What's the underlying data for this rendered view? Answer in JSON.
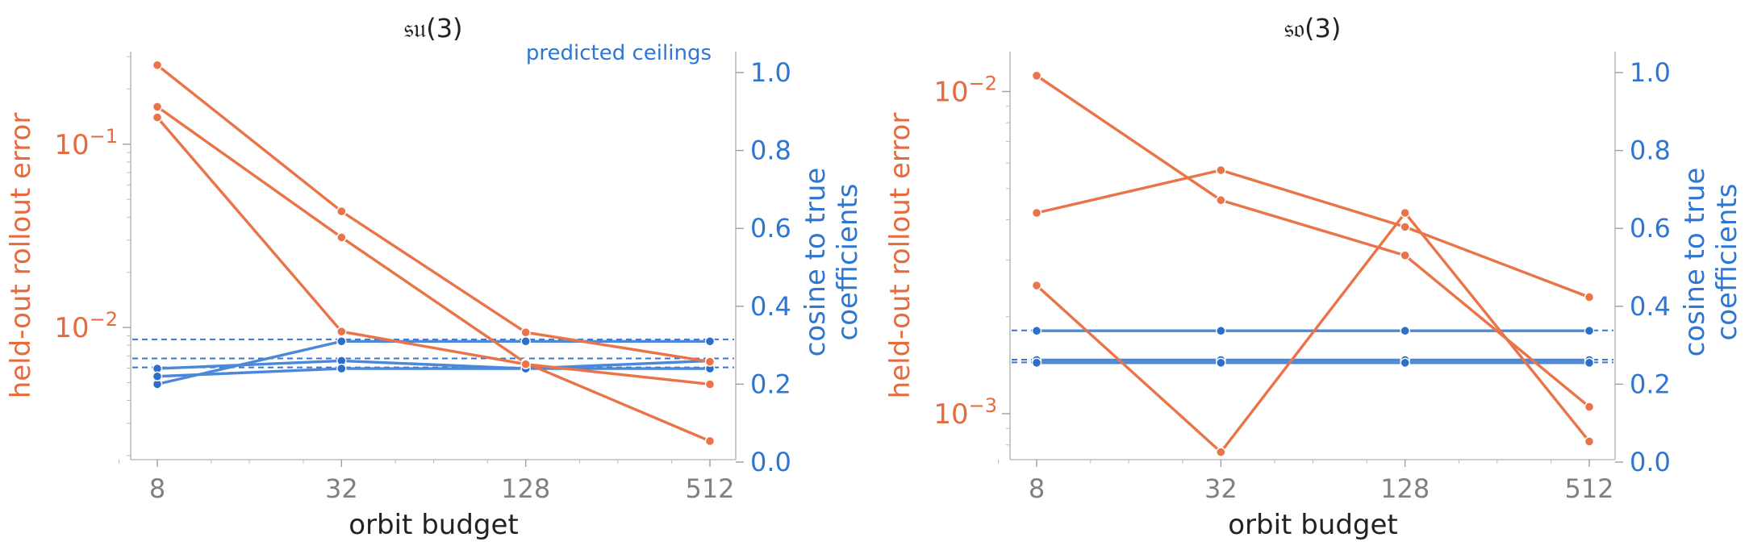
{
  "chart_data": [
    {
      "type": "line",
      "title": "𝔰𝔲(3)",
      "xlabel": "orbit budget",
      "ylabel_left": "held-out rollout error",
      "ylabel_right": "cosine to true\ncoefficients",
      "x": [
        8,
        32,
        128,
        512
      ],
      "x_scale": "log2",
      "left_yscale": "log",
      "left_ylim": [
        0.0019,
        0.32
      ],
      "left_ytick_labels": [
        "10^-2",
        "10^-1"
      ],
      "right_ylim": [
        0,
        1.05
      ],
      "right_ytick_labels": [
        "0.0",
        "0.2",
        "0.4",
        "0.6",
        "0.8",
        "1.0"
      ],
      "annotation": "predicted ceilings",
      "left_series": [
        {
          "values": [
            0.27,
            0.043,
            0.0094,
            0.0065
          ]
        },
        {
          "values": [
            0.16,
            0.031,
            0.0064,
            0.0024
          ]
        },
        {
          "values": [
            0.14,
            0.0095,
            0.0063,
            0.0049
          ]
        }
      ],
      "right_series": [
        {
          "values": [
            0.2,
            0.31,
            0.31,
            0.31
          ]
        },
        {
          "values": [
            0.24,
            0.26,
            0.24,
            0.24
          ]
        },
        {
          "values": [
            0.22,
            0.24,
            0.24,
            0.26
          ]
        }
      ],
      "ceilings": [
        0.315,
        0.266,
        0.243
      ]
    },
    {
      "type": "line",
      "title": "𝔰𝔬(3)",
      "xlabel": "orbit budget",
      "ylabel_left": "held-out rollout error",
      "ylabel_right": "cosine to true\ncoefficients",
      "x": [
        8,
        32,
        128,
        512
      ],
      "x_scale": "log2",
      "left_yscale": "log",
      "left_ylim": [
        0.00072,
        0.0133
      ],
      "left_ytick_labels": [
        "10^-3",
        "10^-2"
      ],
      "right_ylim": [
        0,
        1.05
      ],
      "right_ytick_labels": [
        "0.0",
        "0.2",
        "0.4",
        "0.6",
        "0.8",
        "1.0"
      ],
      "left_series": [
        {
          "values": [
            0.0112,
            0.0046,
            0.0031,
            0.00105
          ]
        },
        {
          "values": [
            0.0042,
            0.0057,
            0.0038,
            0.0023
          ]
        },
        {
          "values": [
            0.0025,
            0.00076,
            0.0042,
            0.00082
          ]
        }
      ],
      "right_series": [
        {
          "values": [
            0.337,
            0.337,
            0.337,
            0.337
          ]
        },
        {
          "values": [
            0.262,
            0.262,
            0.262,
            0.262
          ]
        },
        {
          "values": [
            0.255,
            0.255,
            0.255,
            0.255
          ]
        }
      ],
      "ceilings": [
        0.338,
        0.263,
        0.256
      ]
    }
  ],
  "colors": {
    "error": "#ea7448",
    "error_label": "#e56a3c",
    "cosine": "#4c88d8",
    "cosine_label": "#2d77d2",
    "tick_label": "#808080"
  }
}
